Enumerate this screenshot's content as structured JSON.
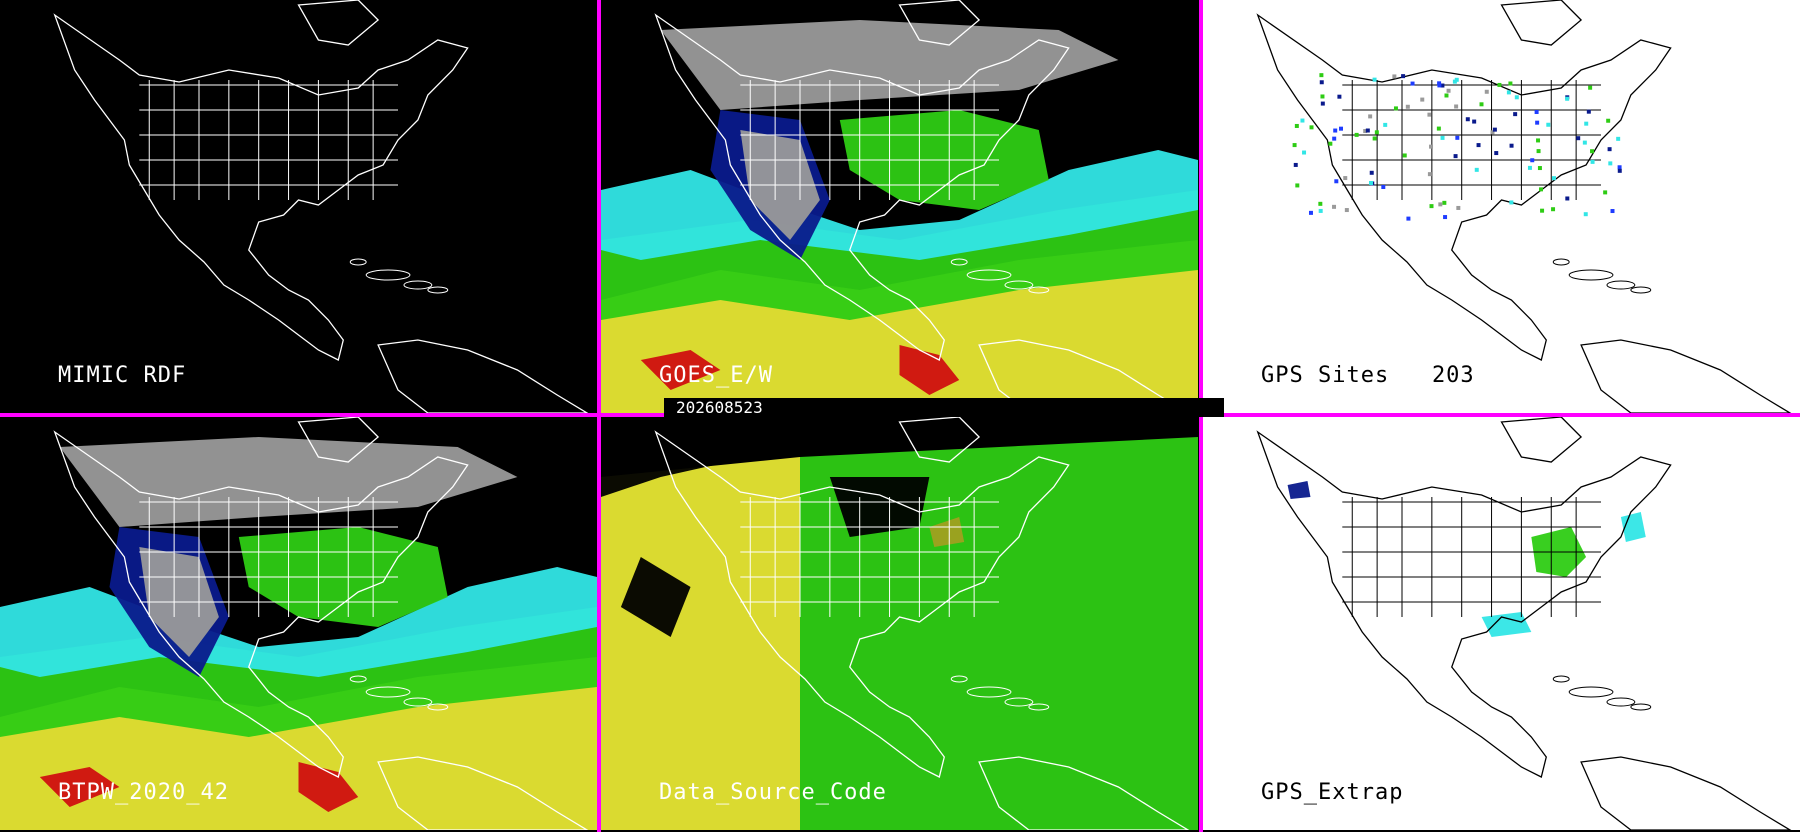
{
  "panels": [
    {
      "label": "MIMIC RDF",
      "style": "blank"
    },
    {
      "label": "GOES_E/W",
      "style": "tpw"
    },
    {
      "label": "GPS Sites   203",
      "style": "sites"
    },
    {
      "label": "BTPW_2020_42",
      "style": "tpw"
    },
    {
      "label": "Data_Source_Code",
      "style": "source"
    },
    {
      "label": "GPS_Extrap",
      "style": "extrap"
    }
  ],
  "timestamp": "202608523",
  "colors": {
    "divider": "#ff00ff",
    "background": "#000000",
    "map_lines_dark": "#ffffff",
    "map_lines_light": "#000000",
    "gray": "#9a9a9a",
    "navy": "#0a1a8c",
    "blue": "#1e3cff",
    "cyan": "#31e6e6",
    "green": "#2ecc14",
    "yellow": "#e6e633",
    "olive": "#a0a020",
    "red": "#d01010"
  }
}
